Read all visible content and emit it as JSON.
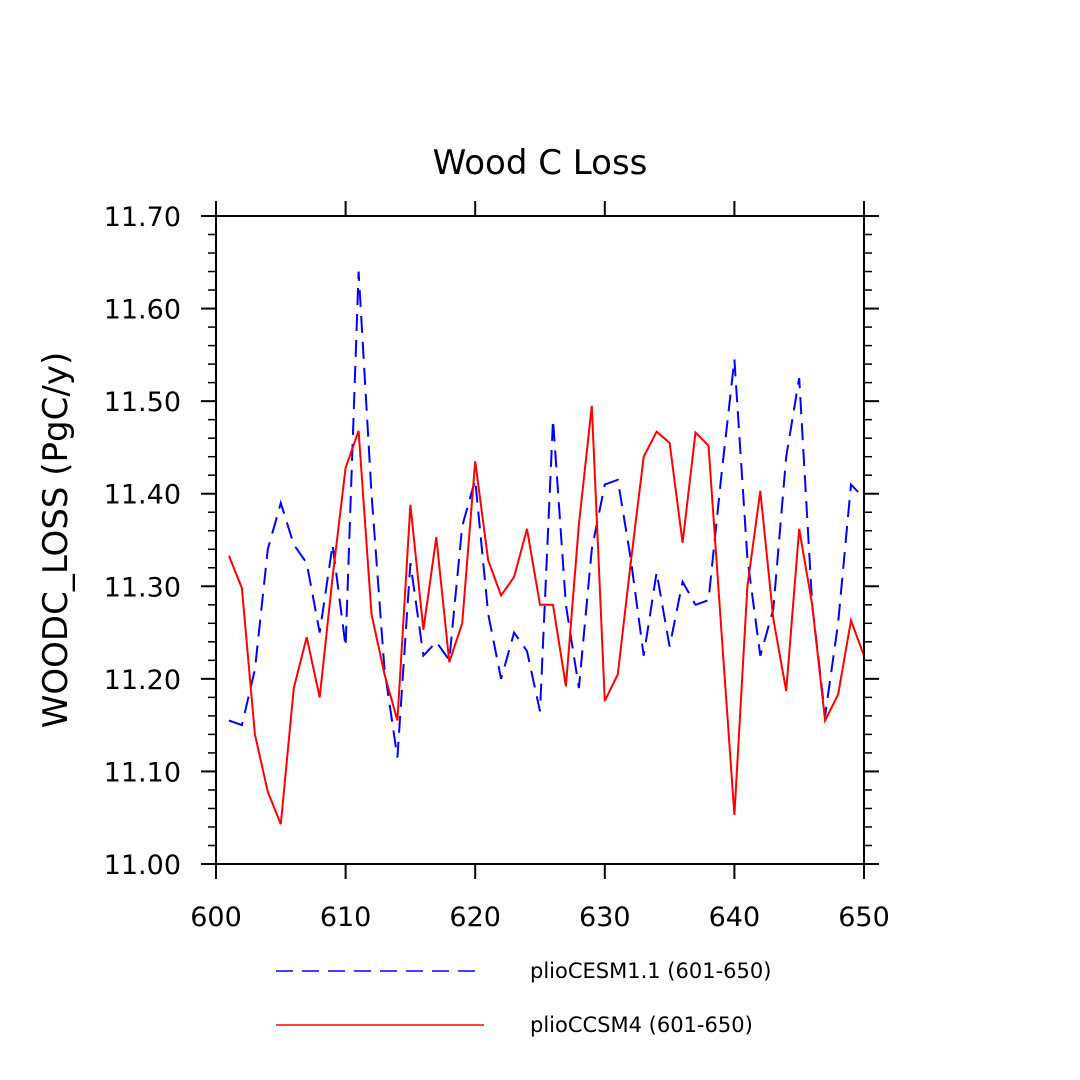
{
  "chart_data": {
    "type": "line",
    "title": "Wood C Loss",
    "xlabel": "",
    "ylabel": "WOODC_LOSS  (PgC/y)",
    "xlim": [
      600,
      650
    ],
    "ylim": [
      11.0,
      11.7
    ],
    "xticks": [
      600,
      610,
      620,
      630,
      640,
      650
    ],
    "yticks": [
      11.0,
      11.1,
      11.2,
      11.3,
      11.4,
      11.5,
      11.6,
      11.7
    ],
    "xtick_labels": [
      "600",
      "610",
      "620",
      "630",
      "640",
      "650"
    ],
    "ytick_labels": [
      "11.00",
      "11.10",
      "11.20",
      "11.30",
      "11.40",
      "11.50",
      "11.60",
      "11.70"
    ],
    "legend_position": "bottom",
    "grid": false,
    "x": [
      601,
      602,
      603,
      604,
      605,
      606,
      607,
      608,
      609,
      610,
      611,
      612,
      613,
      614,
      615,
      616,
      617,
      618,
      619,
      620,
      621,
      622,
      623,
      624,
      625,
      626,
      627,
      628,
      629,
      630,
      631,
      632,
      633,
      634,
      635,
      636,
      637,
      638,
      639,
      640,
      641,
      642,
      643,
      644,
      645,
      646,
      647,
      648,
      649,
      650
    ],
    "series": [
      {
        "name": "plioCESM1.1 (601-650)",
        "color": "#0000ff",
        "dash": "dashed",
        "values": [
          11.155,
          11.15,
          11.21,
          11.34,
          11.39,
          11.345,
          11.325,
          11.25,
          11.345,
          11.235,
          11.64,
          11.4,
          11.21,
          11.115,
          11.325,
          11.225,
          11.24,
          11.22,
          11.365,
          11.415,
          11.27,
          11.2,
          11.25,
          11.23,
          11.165,
          11.48,
          11.28,
          11.19,
          11.34,
          11.41,
          11.415,
          11.33,
          11.225,
          11.315,
          11.235,
          11.305,
          11.28,
          11.285,
          11.42,
          11.545,
          11.33,
          11.225,
          11.275,
          11.44,
          11.525,
          11.28,
          11.16,
          11.26,
          11.41,
          11.395
        ]
      },
      {
        "name": "plioCCSM4 (601-650)",
        "color": "#ff0000",
        "dash": "solid",
        "values": [
          11.333,
          11.298,
          11.14,
          11.078,
          11.043,
          11.19,
          11.245,
          11.18,
          11.31,
          11.428,
          11.468,
          11.27,
          11.205,
          11.155,
          11.388,
          11.253,
          11.353,
          11.218,
          11.26,
          11.435,
          11.328,
          11.29,
          11.31,
          11.362,
          11.28,
          11.28,
          11.192,
          11.367,
          11.495,
          11.176,
          11.205,
          11.325,
          11.44,
          11.467,
          11.455,
          11.347,
          11.466,
          11.452,
          11.252,
          11.053,
          11.3,
          11.403,
          11.265,
          11.187,
          11.362,
          11.28,
          11.155,
          11.183,
          11.263,
          11.225
        ]
      }
    ]
  }
}
